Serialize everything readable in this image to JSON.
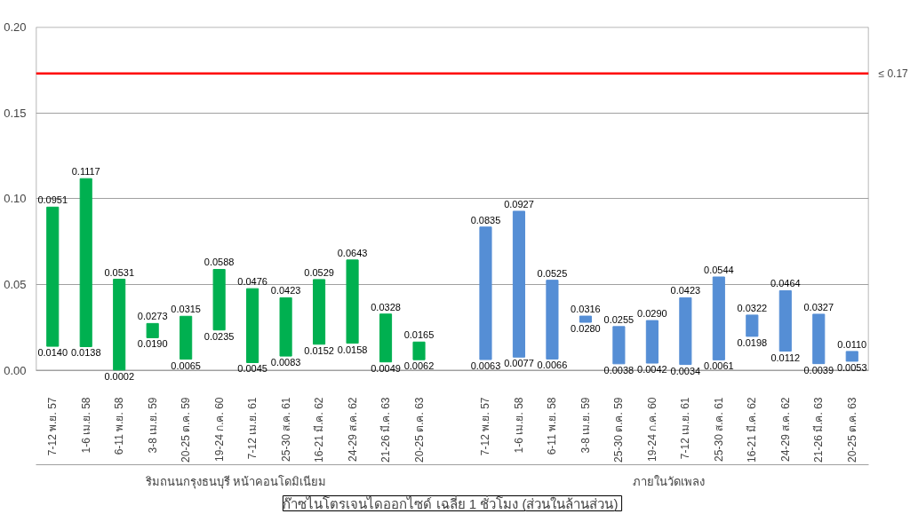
{
  "chart_data": {
    "type": "bar",
    "title": "ก๊าซไนโตรเจนไดออกไซด์ เฉลี่ย 1 ชั่วโมง  (ส่วนในล้านส่วน)",
    "categories": [
      "7-12 พ.ย. 57",
      "1-6 เม.ย. 58",
      "6-11 พ.ย. 58",
      "3-8 เม.ย. 59",
      "20-25 ต.ค. 59",
      "19-24 ก.ค. 60",
      "7-12 เม.ย. 61",
      "25-30 ส.ค. 61",
      "16-21 มี.ค. 62",
      "24-29 ส.ค. 62",
      "21-26 มี.ค. 63",
      "20-25 ต.ค. 63",
      null,
      "7-12 พ.ย. 57",
      "1-6 เม.ย. 58",
      "6-11 พ.ย. 58",
      "3-8 เม.ย. 59",
      "25-30 ต.ค. 59",
      "19-24 ก.ค. 60",
      "7-12 เม.ย. 61",
      "25-30 ส.ค. 61",
      "16-21 มี.ค. 62",
      "24-29 ส.ค. 62",
      "21-26 มี.ค. 63",
      "20-25 ต.ค. 63"
    ],
    "series": [
      {
        "color": "#00b050",
        "base": [
          0.014,
          0.0138,
          0.0002,
          0.019,
          0.0065,
          0.0235,
          0.0045,
          0.0083,
          0.0152,
          0.0158,
          0.0049,
          0.0062,
          null,
          null,
          null,
          null,
          null,
          null,
          null,
          null,
          null,
          null,
          null,
          null,
          null
        ],
        "values": [
          0.0811,
          0.0979,
          0.0529,
          0.0083,
          0.025,
          0.0353,
          0.0431,
          0.034,
          0.0377,
          0.0485,
          0.0279,
          0.0103,
          null,
          null,
          null,
          null,
          null,
          null,
          null,
          null,
          null,
          null,
          null,
          null,
          null
        ]
      },
      {
        "color": "#558ed5",
        "base": [
          null,
          null,
          null,
          null,
          null,
          null,
          null,
          null,
          null,
          null,
          null,
          null,
          null,
          0.0063,
          0.0077,
          0.0066,
          0.028,
          0.0038,
          0.0042,
          0.0034,
          0.0061,
          0.0198,
          0.0112,
          0.0039,
          0.0053
        ],
        "values": [
          null,
          null,
          null,
          null,
          null,
          null,
          null,
          null,
          null,
          null,
          null,
          null,
          null,
          0.0772,
          0.085,
          0.0459,
          0.0036,
          0.0217,
          0.0248,
          0.0389,
          0.0483,
          0.0124,
          0.0352,
          0.0288,
          0.0057
        ]
      }
    ],
    "annotations": [
      "ริมถนนกรุงธนบุรี หน้าคอนโดมิเนียม",
      "ภายในวัดเพลง",
      {
        "text": "0.0951",
        "y": 0.0951
      },
      {
        "text": "0.0140",
        "y": 0.014
      },
      {
        "text": "0.1117",
        "y": 0.1117
      },
      {
        "text": "0.0138",
        "y": 0.0138
      },
      {
        "text": "0.0531",
        "y": 0.0531
      },
      {
        "text": "0.0002",
        "y": 0.0002
      },
      {
        "text": "0.0273",
        "y": 0.0273
      },
      {
        "text": "0.0190",
        "y": 0.019
      },
      {
        "text": "0.0315",
        "y": 0.0315
      },
      {
        "text": "0.0065",
        "y": 0.0065
      },
      {
        "text": "0.0588",
        "y": 0.0588
      },
      {
        "text": "0.0235",
        "y": 0.0235
      },
      {
        "text": "0.0476",
        "y": 0.0476
      },
      {
        "text": "0.0045",
        "y": 0.0045
      },
      {
        "text": "0.0423",
        "y": 0.0423
      },
      {
        "text": "0.0083",
        "y": 0.0083
      },
      {
        "text": "0.0529",
        "y": 0.0529
      },
      {
        "text": "0.0152",
        "y": 0.0152
      },
      {
        "text": "0.0643",
        "y": 0.0643
      },
      {
        "text": "0.0158",
        "y": 0.0158
      },
      {
        "text": "0.0328",
        "y": 0.0328
      },
      {
        "text": "0.0049",
        "y": 0.0049
      },
      {
        "text": "0.0165",
        "y": 0.0165
      },
      {
        "text": "0.0062",
        "y": 0.0062
      },
      {
        "text": "0.0835",
        "y": 0.0835
      },
      {
        "text": "0.0063",
        "y": 0.0063
      },
      {
        "text": "0.0927",
        "y": 0.0927
      },
      {
        "text": "0.0077",
        "y": 0.0077
      },
      {
        "text": "0.0525",
        "y": 0.0525
      },
      {
        "text": "0.0066",
        "y": 0.0066
      },
      {
        "text": "0.0316",
        "y": 0.0316
      },
      {
        "text": "0.0280",
        "y": 0.028
      },
      {
        "text": "0.0255",
        "y": 0.0255
      },
      {
        "text": "0.0038",
        "y": 0.0038
      },
      {
        "text": "0.0290",
        "y": 0.029
      },
      {
        "text": "0.0042",
        "y": 0.0042
      },
      {
        "text": "0.0423",
        "y": 0.0423
      },
      {
        "text": "0.0034",
        "y": 0.0034
      },
      {
        "text": "0.0544",
        "y": 0.0544
      },
      {
        "text": "0.0061",
        "y": 0.0061
      },
      {
        "text": "0.0322",
        "y": 0.0322
      },
      {
        "text": "0.0198",
        "y": 0.0198
      },
      {
        "text": "0.0464",
        "y": 0.0464
      },
      {
        "text": "0.0112",
        "y": 0.0112
      },
      {
        "text": "0.0327",
        "y": 0.0327
      },
      {
        "text": "0.0039",
        "y": 0.0039
      },
      {
        "text": "0.0110",
        "y": 0.011
      },
      {
        "text": "0.0053",
        "y": 0.0053
      }
    ],
    "ref_lines": [
      {
        "axis": "y",
        "value": 0.173,
        "label": "≤ 0.17",
        "color": "#ff0000"
      }
    ],
    "ylim": [
      0,
      0.2
    ],
    "yticks": [
      {
        "value": 0,
        "label": "0.00"
      },
      0.05,
      {
        "value": 0.1,
        "label": "0.10"
      },
      0.15,
      {
        "value": 0.2,
        "label": "0.20"
      }
    ],
    "grid": "y"
  }
}
